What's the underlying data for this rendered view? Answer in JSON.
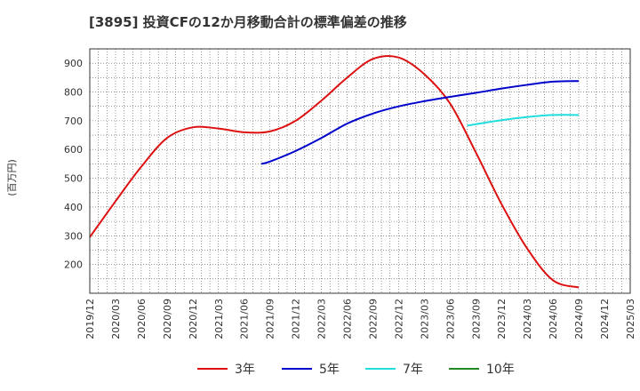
{
  "chart_data": {
    "type": "line",
    "title": "[3895]  投資CFの12か月移動合計の標準偏差の推移",
    "ylabel": "(百万円)",
    "xlabel": "",
    "x_ticks": [
      "2019/12",
      "2020/03",
      "2020/06",
      "2020/09",
      "2020/12",
      "2021/03",
      "2021/06",
      "2021/09",
      "2021/12",
      "2022/03",
      "2022/06",
      "2022/09",
      "2022/12",
      "2023/03",
      "2023/06",
      "2023/09",
      "2023/12",
      "2024/03",
      "2024/06",
      "2024/09",
      "2024/12",
      "2025/03"
    ],
    "y_ticks": [
      200,
      300,
      400,
      500,
      600,
      700,
      800,
      900
    ],
    "ylim": [
      100,
      950
    ],
    "grid": true,
    "legend_position": "bottom",
    "series": [
      {
        "name": "3年",
        "color": "#dd1111",
        "points": [
          [
            "2019/12",
            295
          ],
          [
            "2020/03",
            420
          ],
          [
            "2020/06",
            540
          ],
          [
            "2020/09",
            640
          ],
          [
            "2020/12",
            677
          ],
          [
            "2021/03",
            673
          ],
          [
            "2021/06",
            660
          ],
          [
            "2021/09",
            663
          ],
          [
            "2021/12",
            700
          ],
          [
            "2022/03",
            770
          ],
          [
            "2022/06",
            850
          ],
          [
            "2022/09",
            915
          ],
          [
            "2022/12",
            920
          ],
          [
            "2023/03",
            862
          ],
          [
            "2023/06",
            760
          ],
          [
            "2023/09",
            590
          ],
          [
            "2023/12",
            410
          ],
          [
            "2024/03",
            255
          ],
          [
            "2024/06",
            145
          ],
          [
            "2024/09",
            120
          ]
        ]
      },
      {
        "name": "5年",
        "color": "#0000cc",
        "points": [
          [
            "2021/08",
            550
          ],
          [
            "2021/09",
            558
          ],
          [
            "2021/12",
            595
          ],
          [
            "2022/03",
            640
          ],
          [
            "2022/06",
            690
          ],
          [
            "2022/09",
            725
          ],
          [
            "2022/12",
            750
          ],
          [
            "2023/03",
            768
          ],
          [
            "2023/06",
            783
          ],
          [
            "2023/09",
            797
          ],
          [
            "2023/12",
            812
          ],
          [
            "2024/03",
            825
          ],
          [
            "2024/06",
            836
          ],
          [
            "2024/09",
            838
          ]
        ]
      },
      {
        "name": "7年",
        "color": "#22dddd",
        "points": [
          [
            "2023/08",
            683
          ],
          [
            "2023/09",
            688
          ],
          [
            "2023/12",
            702
          ],
          [
            "2024/03",
            713
          ],
          [
            "2024/06",
            720
          ],
          [
            "2024/09",
            720
          ]
        ]
      },
      {
        "name": "10年",
        "color": "#228822",
        "points": []
      }
    ]
  }
}
